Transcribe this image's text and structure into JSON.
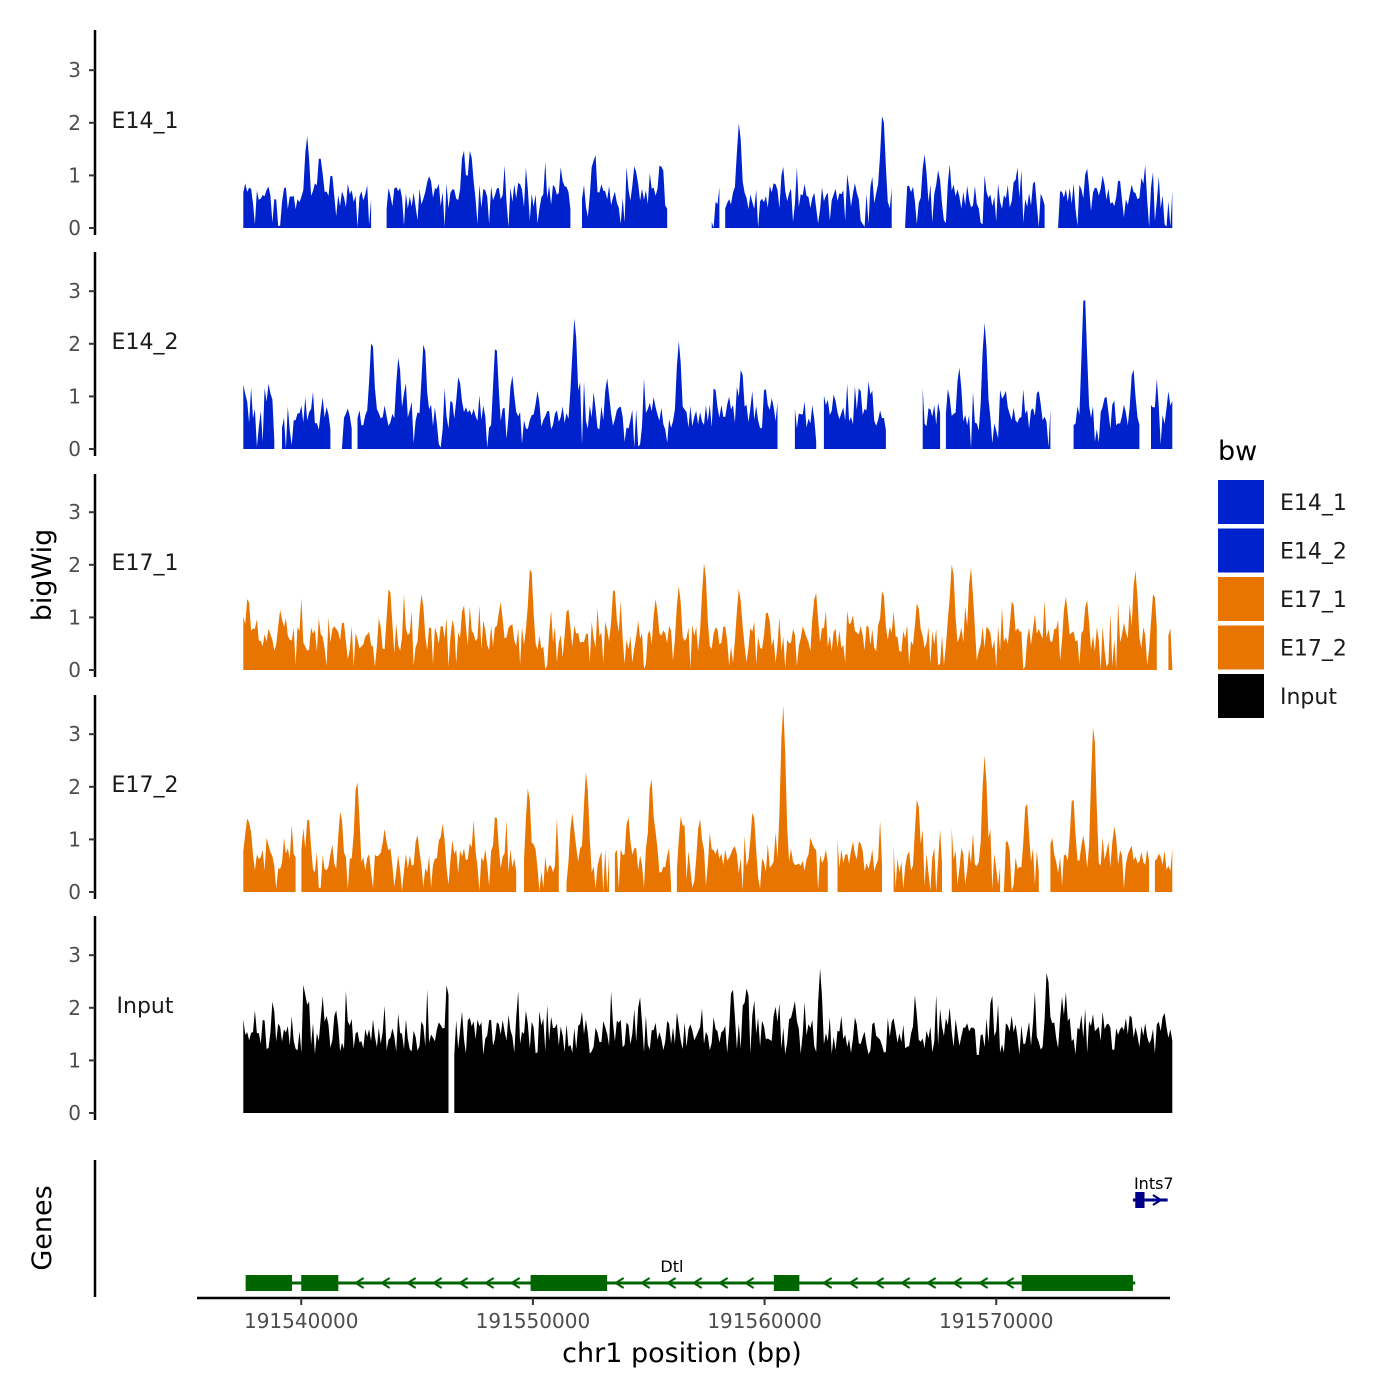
{
  "chart_data": {
    "type": "area",
    "title": "",
    "xlabel": "chr1 position (bp)",
    "ylabel": "bigWig",
    "genes_label": "Genes",
    "chromosome": "chr1",
    "xlim": [
      191535500,
      191577500
    ],
    "x_ticks": [
      191540000,
      191550000,
      191560000,
      191570000
    ],
    "x_tick_labels": [
      "191540000",
      "191550000",
      "191560000",
      "191570000"
    ],
    "ylim": [
      0,
      3.6
    ],
    "y_ticks": [
      0,
      1,
      2,
      3
    ],
    "y_tick_labels": [
      "0",
      "1",
      "2",
      "3"
    ],
    "data_range": [
      191537500,
      191577600
    ],
    "legend": {
      "title": "bw",
      "position": "right",
      "entries": [
        {
          "label": "E14_1",
          "color": "#0022cc"
        },
        {
          "label": "E14_2",
          "color": "#0022cc"
        },
        {
          "label": "E17_1",
          "color": "#e87500"
        },
        {
          "label": "E17_2",
          "color": "#e87500"
        },
        {
          "label": "Input",
          "color": "#000000"
        }
      ]
    },
    "series": [
      {
        "name": "E14_1",
        "color": "#0022cc",
        "peaks": [
          [
            191537600,
            0.8
          ],
          [
            191538400,
            0.6
          ],
          [
            191540250,
            1.75
          ],
          [
            191540800,
            1.4
          ],
          [
            191541300,
            1.05
          ],
          [
            191543400,
            0.9
          ],
          [
            191545500,
            1.0
          ],
          [
            191547000,
            1.5
          ],
          [
            191547300,
            1.5
          ],
          [
            191549400,
            0.9
          ],
          [
            191551300,
            0.9
          ],
          [
            191552600,
            1.3
          ],
          [
            191554400,
            1.2
          ],
          [
            191555500,
            1.25
          ],
          [
            191558900,
            2.0
          ],
          [
            191563900,
            0.85
          ],
          [
            191565100,
            2.2
          ],
          [
            191566900,
            1.4
          ],
          [
            191567500,
            1.1
          ],
          [
            191570800,
            0.95
          ],
          [
            191573900,
            1.15
          ],
          [
            191574600,
            1.0
          ],
          [
            191575300,
            0.95
          ]
        ],
        "gaps": [
          [
            191543050,
            191543650
          ],
          [
            191551700,
            191552100
          ],
          [
            191555800,
            191557700
          ],
          [
            191558100,
            191558300
          ],
          [
            191565500,
            191566000
          ],
          [
            191572100,
            191572600
          ]
        ]
      },
      {
        "name": "E14_2",
        "color": "#0022cc",
        "peaks": [
          [
            191537600,
            1.05
          ],
          [
            191538600,
            1.25
          ],
          [
            191541100,
            0.8
          ],
          [
            191543050,
            2.1
          ],
          [
            191544200,
            1.75
          ],
          [
            191545300,
            2.05
          ],
          [
            191546800,
            1.4
          ],
          [
            191548400,
            2.0
          ],
          [
            191549100,
            1.4
          ],
          [
            191550200,
            1.1
          ],
          [
            191551800,
            2.5
          ],
          [
            191553200,
            1.35
          ],
          [
            191556300,
            2.05
          ],
          [
            191558400,
            0.85
          ],
          [
            191559000,
            1.55
          ],
          [
            191561600,
            0.7
          ],
          [
            191563000,
            1.05
          ],
          [
            191564100,
            1.2
          ],
          [
            191566100,
            1.0
          ],
          [
            191567700,
            0.95
          ],
          [
            191568400,
            1.55
          ],
          [
            191569500,
            2.4
          ],
          [
            191570300,
            1.05
          ],
          [
            191571800,
            1.15
          ],
          [
            191573800,
            3.0
          ],
          [
            191575900,
            1.55
          ]
        ],
        "gaps": [
          [
            191538900,
            191539100
          ],
          [
            191541300,
            191541700
          ],
          [
            191542200,
            191542400
          ],
          [
            191560600,
            191561300
          ],
          [
            191562300,
            191562500
          ],
          [
            191565300,
            191566800
          ],
          [
            191567600,
            191567800
          ],
          [
            191572400,
            191573300
          ],
          [
            191576200,
            191576600
          ]
        ]
      },
      {
        "name": "E17_1",
        "color": "#e87500",
        "peaks": [
          [
            191537700,
            1.4
          ],
          [
            191539100,
            1.15
          ],
          [
            191541800,
            0.95
          ],
          [
            191543800,
            1.6
          ],
          [
            191545200,
            1.45
          ],
          [
            191547000,
            1.25
          ],
          [
            191548600,
            1.3
          ],
          [
            191549900,
            2.0
          ],
          [
            191551500,
            1.2
          ],
          [
            191553500,
            1.6
          ],
          [
            191555300,
            1.35
          ],
          [
            191556300,
            1.6
          ],
          [
            191557400,
            2.05
          ],
          [
            191558900,
            1.55
          ],
          [
            191560100,
            1.15
          ],
          [
            191562200,
            1.5
          ],
          [
            191563800,
            1.05
          ],
          [
            191565100,
            1.55
          ],
          [
            191566600,
            1.3
          ],
          [
            191568100,
            2.05
          ],
          [
            191568900,
            1.95
          ],
          [
            191570700,
            1.35
          ],
          [
            191573000,
            1.4
          ],
          [
            191573900,
            1.35
          ],
          [
            191576000,
            1.9
          ],
          [
            191576800,
            1.5
          ]
        ],
        "gaps": [
          [
            191577000,
            191577350
          ]
        ]
      },
      {
        "name": "E17_2",
        "color": "#e87500",
        "peaks": [
          [
            191537700,
            1.45
          ],
          [
            191538600,
            0.9
          ],
          [
            191540300,
            1.45
          ],
          [
            191541700,
            1.55
          ],
          [
            191542400,
            2.15
          ],
          [
            191543600,
            1.2
          ],
          [
            191545000,
            1.1
          ],
          [
            191546100,
            1.3
          ],
          [
            191547300,
            0.95
          ],
          [
            191548400,
            1.5
          ],
          [
            191549800,
            2.0
          ],
          [
            191551700,
            1.5
          ],
          [
            191552300,
            2.3
          ],
          [
            191554100,
            1.45
          ],
          [
            191555100,
            2.2
          ],
          [
            191556400,
            1.45
          ],
          [
            191557200,
            1.4
          ],
          [
            191559500,
            1.55
          ],
          [
            191560800,
            3.55
          ],
          [
            191562000,
            1.05
          ],
          [
            191564100,
            1.0
          ],
          [
            191566600,
            1.8
          ],
          [
            191568000,
            1.5
          ],
          [
            191569500,
            2.6
          ],
          [
            191571300,
            1.75
          ],
          [
            191573300,
            1.85
          ],
          [
            191574200,
            3.2
          ],
          [
            191575100,
            1.25
          ],
          [
            191576900,
            0.65
          ]
        ],
        "gaps": [
          [
            191539800,
            191540000
          ],
          [
            191549300,
            191549600
          ],
          [
            191551200,
            191551400
          ],
          [
            191553300,
            191553500
          ],
          [
            191556000,
            191556200
          ],
          [
            191562800,
            191563100
          ],
          [
            191565100,
            191565500
          ],
          [
            191567700,
            191568000
          ],
          [
            191570200,
            191570300
          ],
          [
            191571900,
            191572300
          ],
          [
            191576600,
            191576800
          ]
        ]
      },
      {
        "name": "Input",
        "color": "#000000",
        "peaks": [
          [
            191538000,
            1.95
          ],
          [
            191539200,
            1.4
          ],
          [
            191540200,
            2.3
          ],
          [
            191541100,
            1.85
          ],
          [
            191542000,
            1.75
          ],
          [
            191542900,
            1.6
          ],
          [
            191543800,
            1.45
          ],
          [
            191545300,
            1.4
          ],
          [
            191546300,
            2.5
          ],
          [
            191547300,
            1.85
          ],
          [
            191548900,
            1.45
          ],
          [
            191549700,
            1.95
          ],
          [
            191550800,
            1.85
          ],
          [
            191552100,
            1.95
          ],
          [
            191553400,
            1.9
          ],
          [
            191554600,
            2.25
          ],
          [
            191555800,
            1.4
          ],
          [
            191557100,
            1.6
          ],
          [
            191558600,
            2.45
          ],
          [
            191559100,
            2.2
          ],
          [
            191560400,
            1.85
          ],
          [
            191561400,
            1.75
          ],
          [
            191562400,
            2.75
          ],
          [
            191563200,
            1.6
          ],
          [
            191564100,
            1.3
          ],
          [
            191565700,
            1.35
          ],
          [
            191566500,
            2.25
          ],
          [
            191567600,
            1.85
          ],
          [
            191568600,
            1.65
          ],
          [
            191569800,
            2.3
          ],
          [
            191570900,
            1.45
          ],
          [
            191572200,
            2.75
          ],
          [
            191573000,
            2.3
          ],
          [
            191574300,
            1.65
          ],
          [
            191575800,
            1.95
          ],
          [
            191577000,
            1.75
          ]
        ],
        "gaps": [
          [
            191546400,
            191546600
          ]
        ]
      }
    ],
    "genes": [
      {
        "name": "Dtl",
        "strand": "-",
        "color": "#006400",
        "start": 191537600,
        "end": 191576000,
        "exons": [
          [
            191537600,
            191539600
          ],
          [
            191540000,
            191541600
          ],
          [
            191549900,
            191553200
          ],
          [
            191560400,
            191561500
          ],
          [
            191571100,
            191575900
          ]
        ],
        "label_position": 191556000
      },
      {
        "name": "Ints7",
        "strand": "+",
        "color": "#00008b",
        "start": 191575900,
        "end": 191577400,
        "exons": [
          [
            191576000,
            191576400
          ]
        ],
        "label_position": 191576800
      }
    ]
  }
}
